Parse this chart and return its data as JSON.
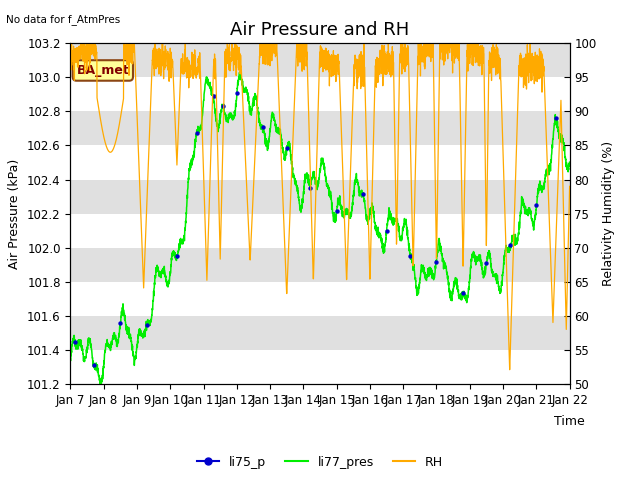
{
  "title": "Air Pressure and RH",
  "top_left_text": "No data for f_AtmPres",
  "annotation_text": "BA_met",
  "xlabel": "Time",
  "ylabel_left": "Air Pressure (kPa)",
  "ylabel_right": "Relativity Humidity (%)",
  "ylim_left": [
    101.2,
    103.2
  ],
  "ylim_right": [
    50,
    100
  ],
  "yticks_left": [
    101.2,
    101.4,
    101.6,
    101.8,
    102.0,
    102.2,
    102.4,
    102.6,
    102.8,
    103.0,
    103.2
  ],
  "yticks_right": [
    50,
    55,
    60,
    65,
    70,
    75,
    80,
    85,
    90,
    95,
    100
  ],
  "xtick_labels": [
    "Jan 7",
    "Jan 8",
    "Jan 9",
    "Jan 10",
    "Jan 11",
    "Jan 12",
    "Jan 13",
    "Jan 14",
    "Jan 15",
    "Jan 16",
    "Jan 17",
    "Jan 18",
    "Jan 19",
    "Jan 20",
    "Jan 21",
    "Jan 22"
  ],
  "color_li75": "#0000cc",
  "color_li77": "#00ee00",
  "color_rh": "#ffaa00",
  "bg_color": "#ffffff",
  "legend_entries": [
    "li75_p",
    "li77_pres",
    "RH"
  ],
  "title_fontsize": 13,
  "label_fontsize": 9,
  "tick_fontsize": 8.5,
  "band_colors": [
    "#ffffff",
    "#e0e0e0"
  ]
}
